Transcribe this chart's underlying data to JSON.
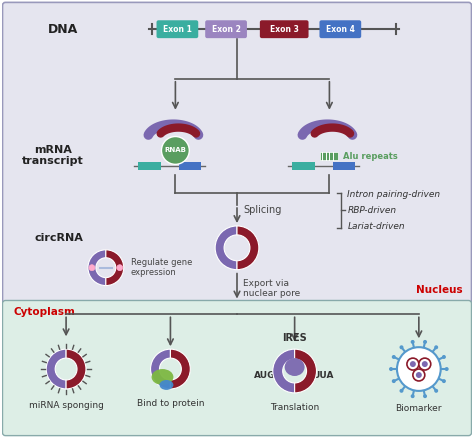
{
  "bg_nucleus": "#e5e5ef",
  "bg_cytoplasm": "#ddeee6",
  "color_exon1": "#3aaea0",
  "color_exon2": "#9b85c0",
  "color_exon3": "#8b1a2a",
  "color_exon4": "#4472c4",
  "color_purple": "#7b68b0",
  "color_dark_red": "#8b1a2a",
  "color_teal": "#3aaea0",
  "color_blue": "#4472c4",
  "color_green_rnab": "#5a9e60",
  "color_dark": "#222222",
  "color_red_label": "#cc0000",
  "color_light_blue": "#5599cc",
  "nucleus_label": "Nucleus",
  "cytoplasm_label": "Cytoplasm",
  "dna_label": "DNA",
  "mrna_label": "mRNA\ntranscript",
  "circrna_label": "circRNA",
  "exon_labels": [
    "Exon 1",
    "Exon 2",
    "Exon 3",
    "Exon 4"
  ],
  "splicing_label": "Splicing",
  "driven_labels": [
    "Intron pairing-driven",
    "RBP-driven",
    "Lariat-driven"
  ],
  "export_label": "Export via\nnuclear pore",
  "regulate_label": "Regulate gene\nexpression",
  "mirna_label": "miRNA sponging",
  "protein_label": "Bind to protein",
  "translation_label": "Translation",
  "biomarker_label": "Biomarker",
  "ires_label": "IRES",
  "aug_label": "AUG",
  "uua_label": "UUA",
  "rnab_label": "RNAB",
  "alu_label": "Alu repeats"
}
